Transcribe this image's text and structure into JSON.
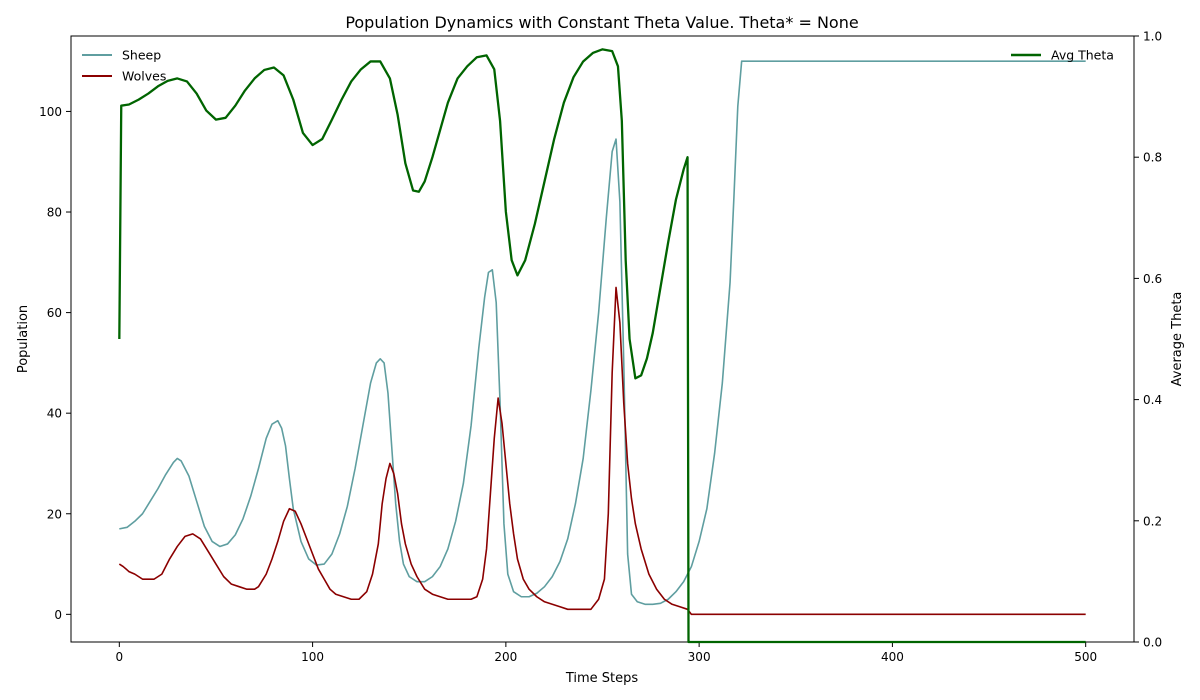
{
  "chart_data": {
    "type": "line",
    "title": "Population Dynamics with Constant Theta Value. Theta* = None",
    "xlabel": "Time Steps",
    "ylabel": "Population",
    "y2label": "Average Theta",
    "xlim": [
      -25,
      525
    ],
    "ylim": [
      -5.5,
      115
    ],
    "y2lim": [
      0,
      1
    ],
    "xticks": [
      0,
      100,
      200,
      300,
      400,
      500
    ],
    "yticks": [
      0,
      20,
      40,
      60,
      80,
      100
    ],
    "y2ticks": [
      0.0,
      0.2,
      0.4,
      0.6,
      0.8,
      1.0
    ],
    "y2tick_labels": [
      "0.0",
      "0.2",
      "0.4",
      "0.6",
      "0.8",
      "1.0"
    ],
    "grid": false,
    "legend_left": "upper-left",
    "legend_right": "upper-right",
    "series": [
      {
        "name": "Sheep",
        "axis": "left",
        "color": "#5f9ea0",
        "x": [
          0,
          4,
          8,
          12,
          16,
          20,
          24,
          28,
          30,
          32,
          36,
          40,
          44,
          48,
          52,
          56,
          60,
          64,
          68,
          72,
          76,
          79,
          82,
          84,
          86,
          88,
          90,
          94,
          98,
          102,
          106,
          110,
          114,
          118,
          122,
          126,
          130,
          133,
          135,
          137,
          139,
          141,
          143,
          145,
          147,
          150,
          154,
          158,
          162,
          166,
          170,
          174,
          178,
          182,
          186,
          189,
          191,
          193,
          195,
          197,
          199,
          201,
          204,
          208,
          212,
          216,
          220,
          224,
          228,
          232,
          236,
          240,
          244,
          248,
          252,
          255,
          257,
          259,
          261,
          263,
          265,
          268,
          272,
          276,
          280,
          284,
          288,
          292,
          296,
          300,
          304,
          308,
          312,
          316,
          318,
          320,
          322,
          330,
          400,
          500
        ],
        "values": [
          17,
          17.3,
          18.5,
          20,
          22.5,
          25,
          27.8,
          30.2,
          31,
          30.5,
          27.5,
          22.5,
          17.5,
          14.5,
          13.5,
          14,
          15.8,
          19,
          23.5,
          29,
          35,
          37.8,
          38.5,
          37,
          33.5,
          27,
          21,
          14.5,
          11,
          9.8,
          10,
          12,
          16,
          21.5,
          29,
          37.5,
          46,
          50,
          50.8,
          50,
          44,
          33,
          22,
          14.5,
          10,
          7.5,
          6.5,
          6.5,
          7.5,
          9.5,
          13,
          18.5,
          26,
          37.5,
          53,
          63,
          68,
          68.5,
          62,
          42,
          18,
          8,
          4.5,
          3.5,
          3.5,
          4.2,
          5.5,
          7.5,
          10.5,
          15,
          22,
          31,
          44.5,
          60,
          79,
          92,
          94.5,
          82,
          50,
          12,
          4,
          2.5,
          2,
          2,
          2.2,
          3,
          4.5,
          6.5,
          9.5,
          14.5,
          21,
          32,
          46,
          66,
          83,
          101,
          110,
          110,
          110,
          110
        ]
      },
      {
        "name": "Wolves",
        "axis": "left",
        "color": "#8b0000",
        "x": [
          0,
          2,
          5,
          8,
          12,
          18,
          22,
          26,
          30,
          34,
          38,
          42,
          46,
          50,
          54,
          58,
          62,
          66,
          70,
          72,
          76,
          79,
          82,
          85,
          88,
          91,
          94,
          97,
          100,
          103,
          106,
          109,
          112,
          116,
          120,
          124,
          128,
          131,
          134,
          136,
          138,
          140,
          142,
          144,
          146,
          148,
          151,
          154,
          158,
          162,
          166,
          170,
          174,
          178,
          182,
          185,
          188,
          190,
          192,
          194,
          196,
          198,
          200,
          202,
          204,
          206,
          209,
          212,
          216,
          220,
          224,
          228,
          232,
          236,
          240,
          244,
          248,
          251,
          253,
          255,
          257,
          259,
          261,
          263,
          265,
          267,
          270,
          274,
          278,
          282,
          286,
          290,
          294,
          296,
          300,
          400,
          500
        ],
        "values": [
          10,
          9.5,
          8.5,
          8,
          7,
          7,
          8,
          11,
          13.5,
          15.5,
          16,
          15,
          12.5,
          10,
          7.5,
          6,
          5.5,
          5,
          5,
          5.5,
          8,
          11,
          14.5,
          18.5,
          21,
          20.5,
          18,
          15,
          12,
          9,
          7,
          5,
          4,
          3.5,
          3,
          3,
          4.5,
          8,
          14,
          22,
          27,
          30,
          28,
          24,
          18,
          14,
          10,
          7.5,
          5,
          4,
          3.5,
          3,
          3,
          3,
          3,
          3.5,
          7,
          13,
          24,
          35,
          43,
          38,
          30,
          22,
          16,
          11,
          7,
          5,
          3.5,
          2.5,
          2,
          1.5,
          1,
          1,
          1,
          1,
          3,
          7,
          20,
          48,
          65,
          58,
          42,
          30,
          23,
          18,
          13,
          8,
          5,
          3,
          2,
          1.5,
          1,
          0,
          0,
          0,
          0
        ]
      },
      {
        "name": "Avg Theta",
        "axis": "right",
        "color": "#006400",
        "x": [
          0,
          1,
          5,
          10,
          15,
          20,
          25,
          30,
          35,
          40,
          45,
          50,
          55,
          60,
          65,
          70,
          75,
          80,
          85,
          90,
          95,
          100,
          105,
          110,
          115,
          120,
          125,
          130,
          135,
          140,
          144,
          148,
          152,
          155,
          158,
          162,
          166,
          170,
          175,
          180,
          185,
          190,
          194,
          197,
          200,
          203,
          206,
          210,
          215,
          220,
          225,
          230,
          235,
          240,
          245,
          250,
          255,
          258,
          260,
          262,
          264,
          267,
          270,
          273,
          276,
          280,
          284,
          288,
          292,
          294,
          294.5,
          295,
          300,
          400,
          500
        ],
        "values": [
          0.5,
          0.885,
          0.887,
          0.895,
          0.905,
          0.917,
          0.926,
          0.93,
          0.925,
          0.905,
          0.877,
          0.862,
          0.865,
          0.885,
          0.91,
          0.93,
          0.944,
          0.948,
          0.935,
          0.895,
          0.84,
          0.82,
          0.83,
          0.862,
          0.895,
          0.925,
          0.945,
          0.958,
          0.958,
          0.93,
          0.87,
          0.79,
          0.745,
          0.743,
          0.76,
          0.8,
          0.845,
          0.89,
          0.93,
          0.95,
          0.965,
          0.968,
          0.945,
          0.86,
          0.71,
          0.63,
          0.605,
          0.63,
          0.69,
          0.76,
          0.83,
          0.89,
          0.932,
          0.958,
          0.972,
          0.978,
          0.975,
          0.95,
          0.86,
          0.63,
          0.5,
          0.435,
          0.44,
          0.468,
          0.51,
          0.585,
          0.66,
          0.73,
          0.78,
          0.8,
          0.0,
          0.0,
          0.0,
          0.0,
          0.0
        ]
      }
    ]
  }
}
